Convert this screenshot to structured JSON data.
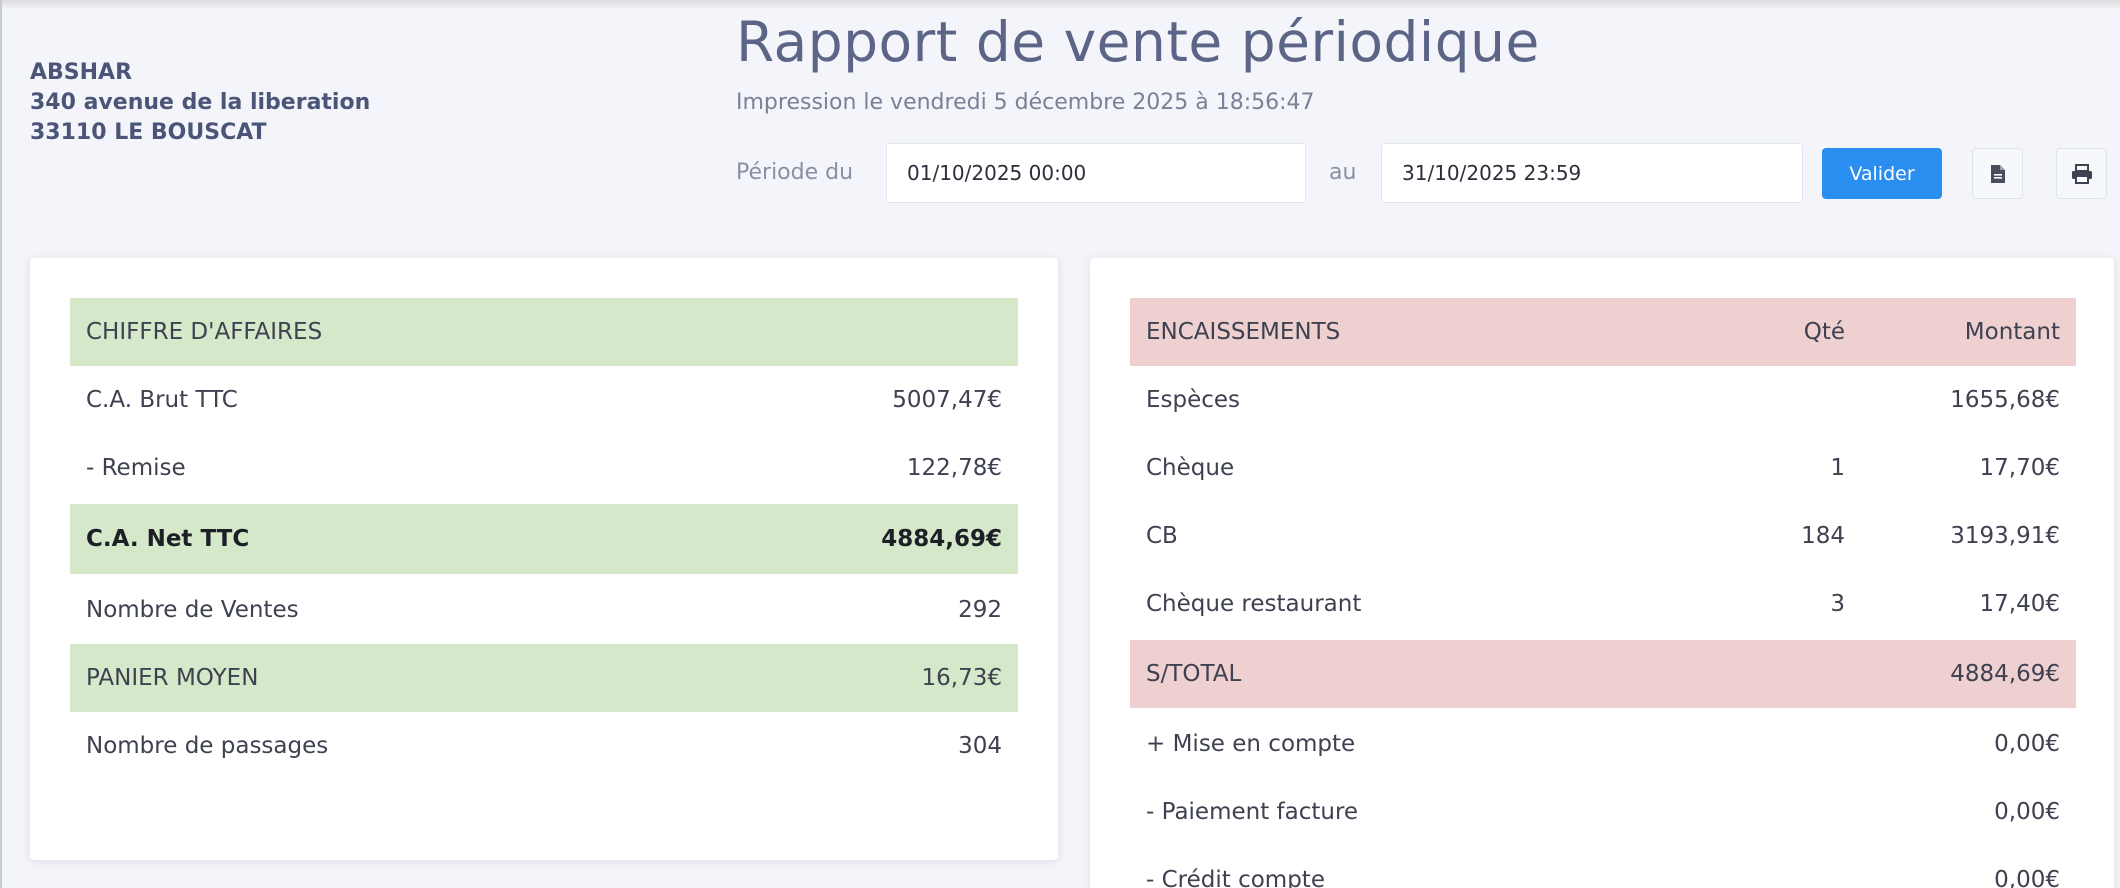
{
  "company": {
    "name": "ABSHAR",
    "address": "340 avenue de la liberation",
    "city": "33110 LE BOUSCAT"
  },
  "header": {
    "title": "Rapport de vente périodique",
    "printed": "Impression le vendredi 5 décembre 2025 à 18:56:47"
  },
  "period": {
    "from_label": "Période du",
    "from_value": "01/10/2025 00:00",
    "to_label": "au",
    "to_value": "31/10/2025 23:59",
    "validate_label": "Valider"
  },
  "colors": {
    "accent": "#2a8df0",
    "green_row": "#d5e8c9",
    "pink_row": "#eed0d0"
  },
  "revenue": {
    "header": "CHIFFRE D'AFFAIRES",
    "rows": [
      {
        "label": "C.A. Brut TTC",
        "value": "5007,47€"
      },
      {
        "label": "- Remise",
        "value": "122,78€"
      },
      {
        "label": "C.A. Net TTC",
        "value": "4884,69€"
      },
      {
        "label": "Nombre de Ventes",
        "value": "292"
      },
      {
        "label": "PANIER MOYEN",
        "value": "16,73€"
      },
      {
        "label": "Nombre de passages",
        "value": "304"
      }
    ]
  },
  "payments": {
    "header": "ENCAISSEMENTS",
    "col_qty": "Qté",
    "col_amount": "Montant",
    "rows": [
      {
        "label": "Espèces",
        "qty": "",
        "amount": "1655,68€"
      },
      {
        "label": "Chèque",
        "qty": "1",
        "amount": "17,70€"
      },
      {
        "label": "CB",
        "qty": "184",
        "amount": "3193,91€"
      },
      {
        "label": "Chèque restaurant",
        "qty": "3",
        "amount": "17,40€"
      },
      {
        "label": "S/TOTAL",
        "qty": "",
        "amount": "4884,69€"
      },
      {
        "label": "+ Mise en compte",
        "qty": "",
        "amount": "0,00€"
      },
      {
        "label": "- Paiement facture",
        "qty": "",
        "amount": "0,00€"
      },
      {
        "label": "- Crédit compte",
        "qty": "",
        "amount": "0,00€"
      }
    ]
  }
}
